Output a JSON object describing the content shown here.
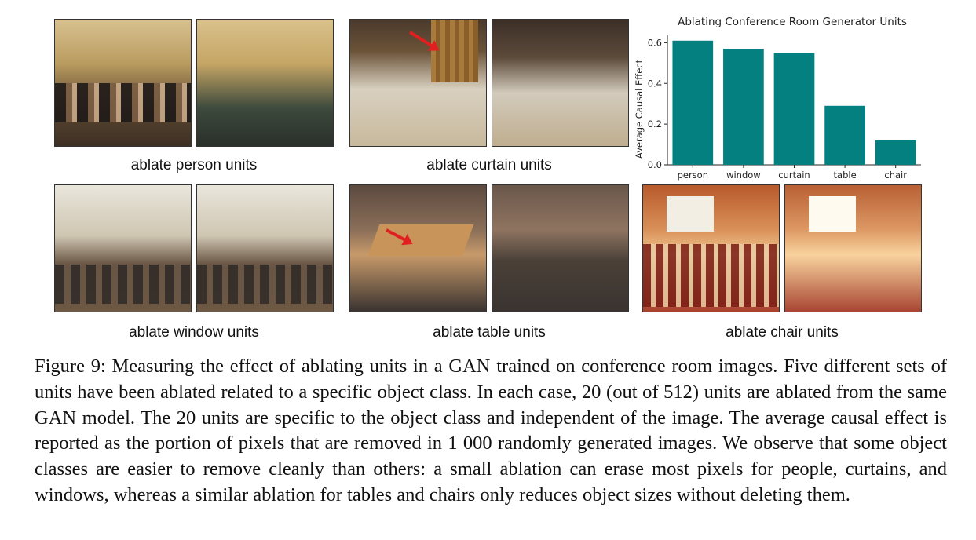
{
  "panels": [
    {
      "caption": "ablate person units"
    },
    {
      "caption": "ablate curtain units"
    },
    {
      "caption": "ablate window units"
    },
    {
      "caption": "ablate table units"
    },
    {
      "caption": "ablate chair units"
    }
  ],
  "chart_data": {
    "type": "bar",
    "title": "Ablating Conference Room Generator Units",
    "xlabel": "",
    "ylabel": "Average Causal Effect",
    "categories": [
      "person",
      "window",
      "curtain",
      "table",
      "chair"
    ],
    "values": [
      0.61,
      0.57,
      0.55,
      0.29,
      0.12
    ],
    "ylim": [
      0,
      0.64
    ],
    "yticks": [
      "0.0",
      "0.2",
      "0.4",
      "0.6"
    ],
    "bar_color": "#048080",
    "grid": false,
    "legend": "none"
  },
  "figure_caption": "Figure 9: Measuring the effect of ablating units in a GAN trained on conference room images. Five different sets of units have been ablated related to a specific object class. In each case, 20 (out of 512) units are ablated from the same GAN model. The 20 units are specific to the object class and independent of the image. The average causal effect is reported as the portion of pixels that are removed in 1 000 randomly generated images. We observe that some object classes are easier to remove cleanly than others: a small ablation can erase most pixels for people, curtains, and windows, whereas a similar ablation for tables and chairs only reduces object sizes without deleting them."
}
